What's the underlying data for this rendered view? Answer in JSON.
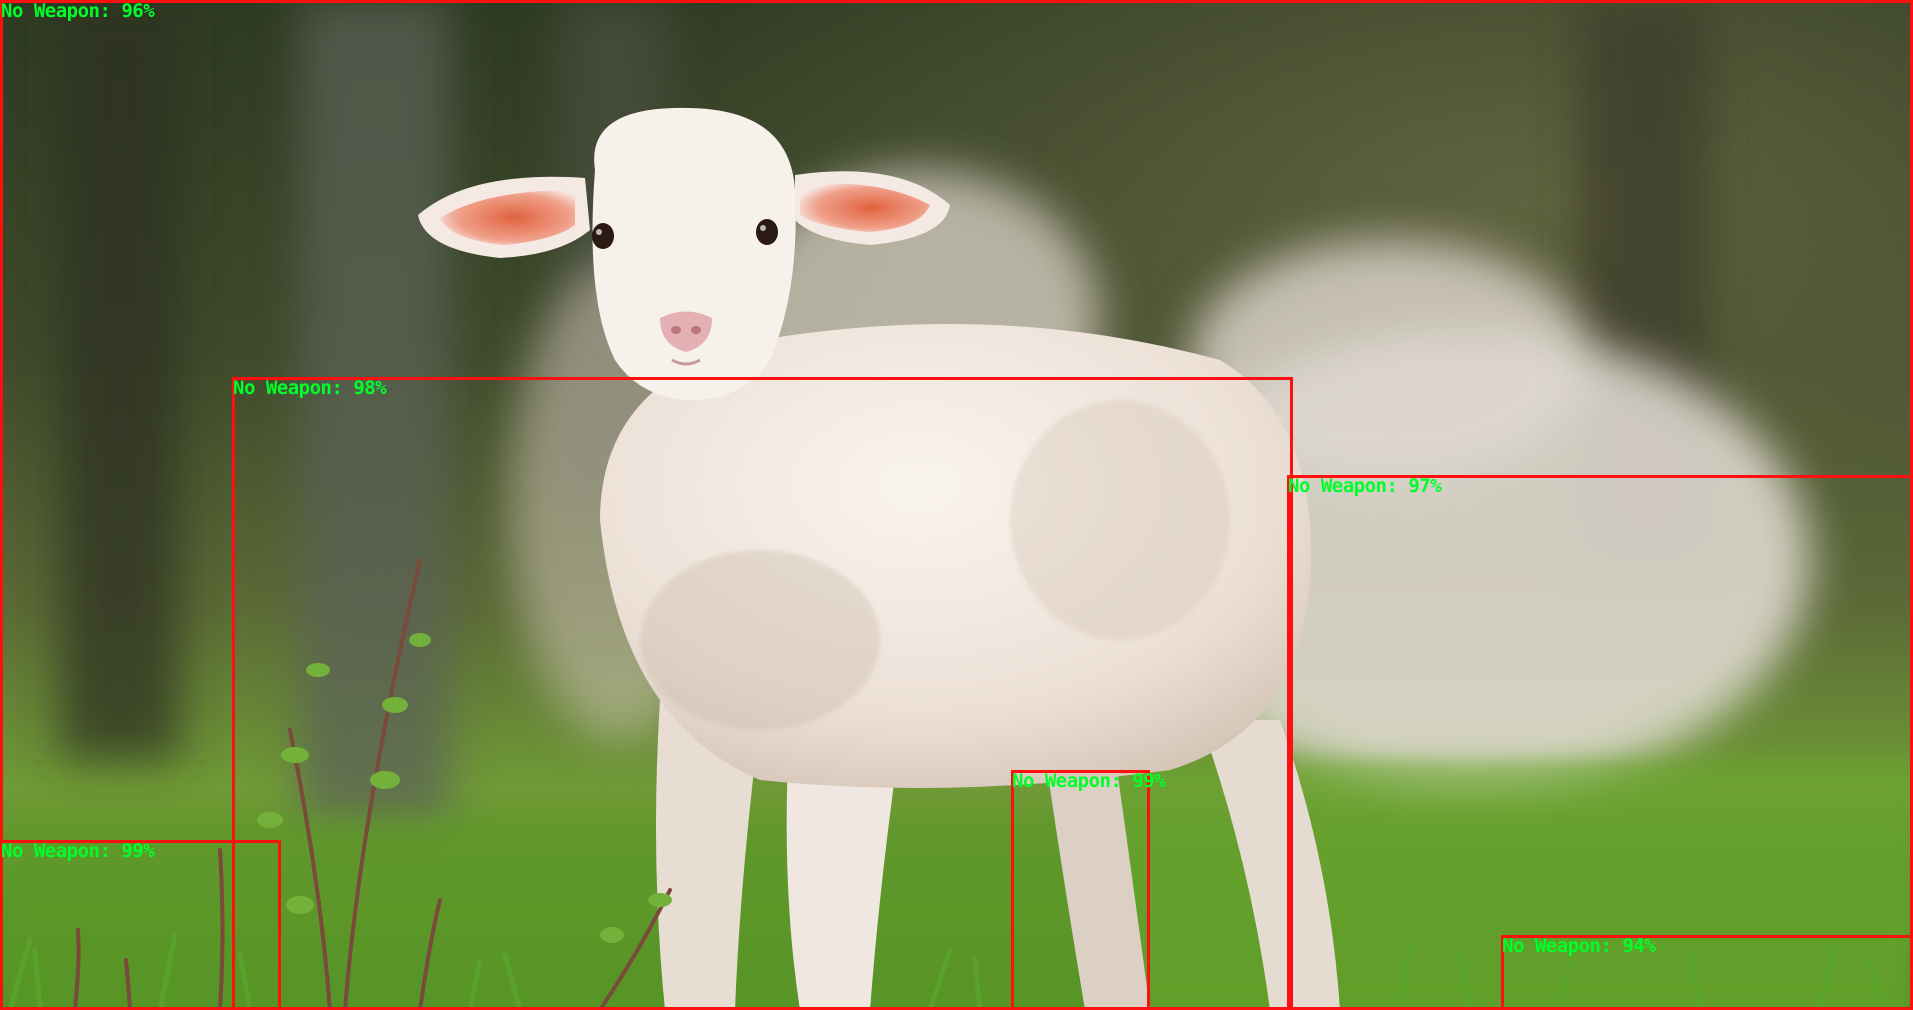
{
  "detections": [
    {
      "label": "No Weapon: 96%"
    },
    {
      "label": "No Weapon: 98%"
    },
    {
      "label": "No Weapon: 97%"
    },
    {
      "label": "No Weapon: 99%"
    },
    {
      "label": "No Weapon: 99%"
    },
    {
      "label": "No Weapon: 94%"
    }
  ],
  "colors": {
    "box": "#ff1010",
    "label": "#00ff2a"
  }
}
